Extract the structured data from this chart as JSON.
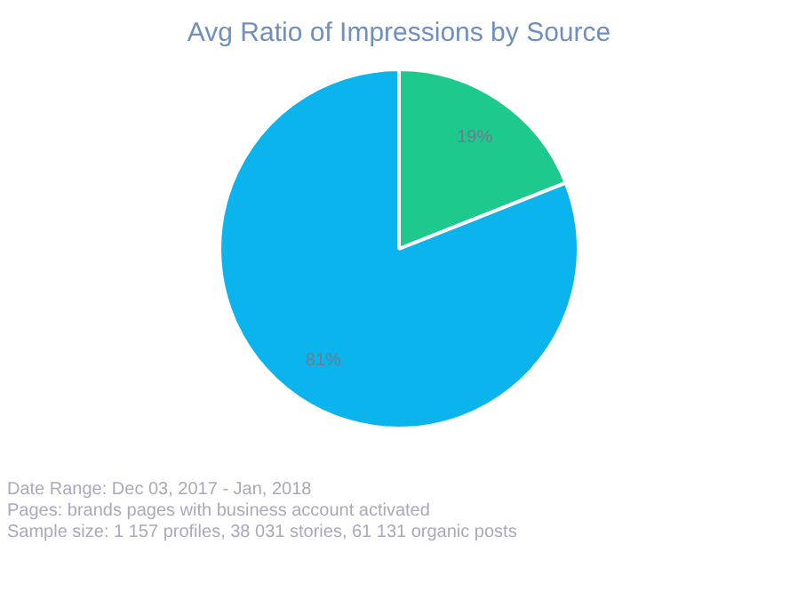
{
  "chart_data": {
    "type": "pie",
    "title": "Avg Ratio of Impressions by Source",
    "categories": [
      null,
      null
    ],
    "values": [
      19,
      81
    ],
    "colors": [
      "#1ec98e",
      "#0bb4ec"
    ],
    "value_labels": [
      "19%",
      "81%"
    ],
    "legend": false,
    "annotations": [
      "Date Range:  Dec 03, 2017  - Jan, 2018",
      "Pages: brands pages with business account activated",
      "Sample size: 1 157 profiles, 38 031 stories, 61 131 organic posts"
    ]
  }
}
